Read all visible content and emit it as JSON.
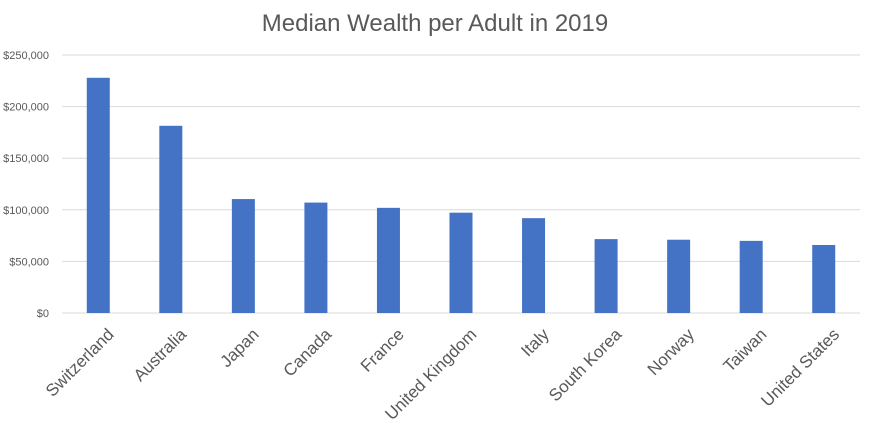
{
  "chart_data": {
    "type": "bar",
    "title": "Median Wealth per Adult in 2019",
    "xlabel": "",
    "ylabel": "",
    "categories": [
      "Switzerland",
      "Australia",
      "Japan",
      "Canada",
      "France",
      "United Kingdom",
      "Italy",
      "South Korea",
      "Norway",
      "Taiwan",
      "United States"
    ],
    "series": [
      {
        "values": [
          227900,
          181400,
          110400,
          107000,
          101900,
          97200,
          91900,
          71600,
          71000,
          69900,
          65900
        ]
      }
    ],
    "ylim": [
      0,
      250000
    ],
    "yticks": [
      0,
      50000,
      100000,
      150000,
      200000,
      250000
    ],
    "ytick_labels": [
      "$0",
      "$50,000",
      "$100,000",
      "$150,000",
      "$200,000",
      "$250,000"
    ],
    "grid": true,
    "legend": "none",
    "colors": {
      "bar": "#4472c4",
      "grid": "#d9d9d9",
      "text": "#595959"
    }
  }
}
